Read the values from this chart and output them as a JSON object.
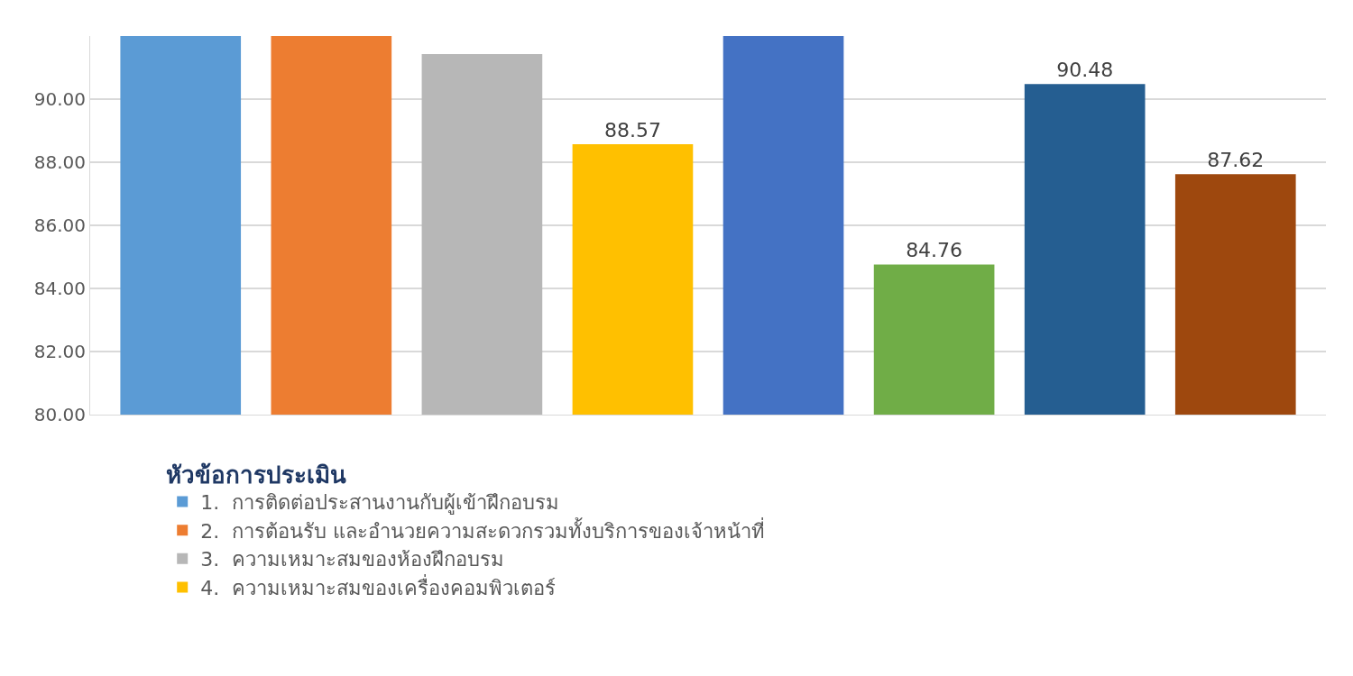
{
  "chart_data": {
    "type": "bar",
    "legend_title": "หัวข้อการประเมิน",
    "categories": [
      null,
      null,
      null,
      null,
      null,
      null,
      null,
      null
    ],
    "series": [
      {
        "name": "1.  การติดต่อประสานงานกับผู้เข้าฝึกอบรม",
        "color": "#5b9bd5",
        "values": [
          92,
          null,
          null,
          null,
          null,
          null,
          null,
          null
        ]
      },
      {
        "name": "2.  การต้อนรับ และอำนวยความสะดวกรวมทั้งบริการของเจ้าหน้าที่",
        "color": "#ed7d31",
        "values": [
          null,
          92,
          null,
          null,
          null,
          null,
          null,
          null
        ]
      },
      {
        "name": "3.  ความเหมาะสมของห้องฝึกอบรม",
        "color": "#b7b7b7",
        "values": [
          null,
          null,
          91.43,
          null,
          null,
          null,
          null,
          null
        ]
      },
      {
        "name": "4.  ความเหมาะสมของเครื่องคอมพิวเตอร์",
        "color": "#ffc000",
        "values": [
          null,
          null,
          null,
          88.57,
          null,
          null,
          null,
          null
        ],
        "value_labels": [
          null,
          null,
          null,
          "88.57",
          null,
          null,
          null,
          null
        ]
      },
      {
        "color": "#4472c4",
        "values": [
          null,
          null,
          null,
          null,
          92,
          null,
          null,
          null
        ]
      },
      {
        "color": "#70ad47",
        "values": [
          null,
          null,
          null,
          null,
          null,
          84.76,
          null,
          null
        ],
        "value_labels": [
          null,
          null,
          null,
          null,
          null,
          "84.76",
          null,
          null
        ]
      },
      {
        "color": "#255e91",
        "values": [
          null,
          null,
          null,
          null,
          null,
          null,
          90.48,
          null
        ],
        "value_labels": [
          null,
          null,
          null,
          null,
          null,
          null,
          "90.48",
          null
        ]
      },
      {
        "color": "#9e480e",
        "values": [
          null,
          null,
          null,
          null,
          null,
          null,
          null,
          87.62
        ],
        "value_labels": [
          null,
          null,
          null,
          null,
          null,
          null,
          null,
          "87.62"
        ]
      }
    ],
    "ylim": [
      80,
      92
    ],
    "yticks": [
      {
        "value": 80,
        "label": "80.00"
      },
      {
        "value": 82,
        "label": "82.00"
      },
      {
        "value": 84,
        "label": "84.00"
      },
      {
        "value": 86,
        "label": "86.00"
      },
      {
        "value": 88,
        "label": "88.00"
      },
      {
        "value": 90,
        "label": "90.00"
      }
    ],
    "grid": "y",
    "legend": "bottom",
    "tick_labels": "y"
  }
}
